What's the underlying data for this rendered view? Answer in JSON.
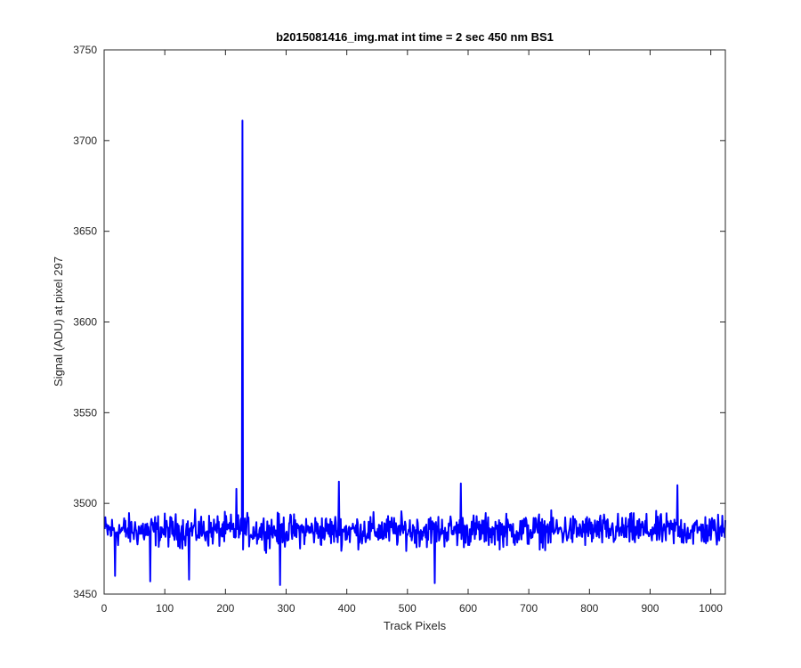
{
  "chart_data": {
    "type": "line",
    "title": "b2015081416_img.mat int time = 2 sec  450 nm BS1",
    "xlabel": "Track Pixels",
    "ylabel": "Signal (ADU) at pixel 297",
    "xlim": [
      0,
      1024
    ],
    "ylim": [
      3450,
      3750
    ],
    "xticks": [
      0,
      100,
      200,
      300,
      400,
      500,
      600,
      700,
      800,
      900,
      1000
    ],
    "yticks": [
      3450,
      3500,
      3550,
      3600,
      3650,
      3700,
      3750
    ],
    "grid": false,
    "line_color": "#0000ff",
    "series": [
      {
        "x_start": 1,
        "x_step": 1,
        "points": 1024,
        "baseline": 3485,
        "noise_amplitude": 13,
        "features": [
          {
            "x": 228,
            "y": 3711
          },
          {
            "x": 290,
            "y": 3455
          },
          {
            "x": 545,
            "y": 3456
          },
          {
            "x": 76,
            "y": 3457
          },
          {
            "x": 140,
            "y": 3458
          },
          {
            "x": 18,
            "y": 3460
          },
          {
            "x": 387,
            "y": 3512
          },
          {
            "x": 588,
            "y": 3511
          },
          {
            "x": 945,
            "y": 3510
          },
          {
            "x": 218,
            "y": 3508
          }
        ]
      }
    ]
  }
}
